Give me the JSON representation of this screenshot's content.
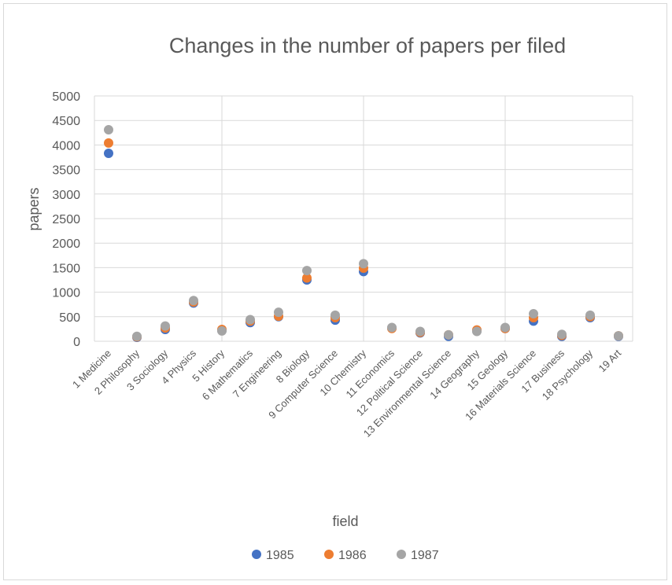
{
  "chart_data": {
    "type": "scatter",
    "title": "Changes in the number of papers per filed",
    "xlabel": "field",
    "ylabel": "papers",
    "ylim": [
      0,
      5000
    ],
    "yticks": [
      "0",
      "500",
      "1000",
      "1500",
      "2000",
      "2500",
      "3000",
      "3500",
      "4000",
      "4500",
      "5000"
    ],
    "grid": true,
    "legend_position": "bottom",
    "categories": [
      "1 Medicine",
      "2 Philosophy",
      "3 Sociology",
      "4 Physics",
      "5 History",
      "6 Mathematics",
      "7 Engineering",
      "8 Biology",
      "9 Computer Science",
      "10 Chemistry",
      "11 Economics",
      "12 Political Science",
      "13 Environmental Science",
      "14 Geography",
      "15 Geology",
      "16 Materials Science",
      "17 Business",
      "18 Psychology",
      "19 Art"
    ],
    "series": [
      {
        "name": "1985",
        "color": "#4472c4",
        "values": [
          3830,
          80,
          240,
          780,
          220,
          380,
          500,
          1250,
          430,
          1420,
          270,
          170,
          100,
          210,
          260,
          410,
          100,
          480,
          100
        ]
      },
      {
        "name": "1986",
        "color": "#ed7d31",
        "values": [
          4040,
          90,
          270,
          800,
          240,
          410,
          510,
          1290,
          480,
          1490,
          260,
          180,
          130,
          230,
          260,
          480,
          120,
          500,
          110
        ]
      },
      {
        "name": "1987",
        "color": "#a5a5a5",
        "values": [
          4310,
          100,
          310,
          830,
          210,
          440,
          590,
          1440,
          530,
          1580,
          280,
          200,
          130,
          200,
          280,
          560,
          140,
          530,
          110
        ]
      }
    ]
  }
}
